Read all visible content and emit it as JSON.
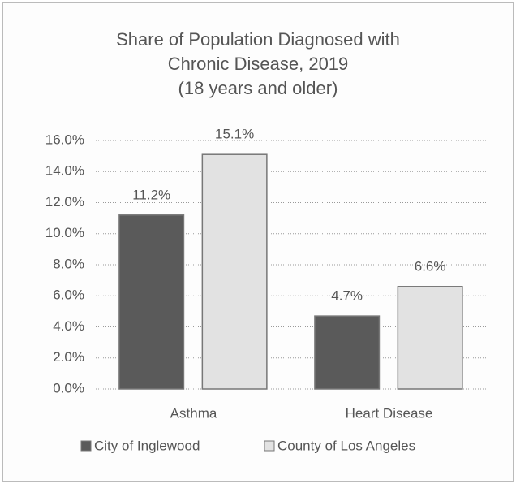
{
  "chart_data": {
    "type": "bar",
    "title": "Share of Population Diagnosed with Chronic Disease, 2019",
    "subtitle": "(18 years and older)",
    "categories": [
      "Asthma",
      "Heart Disease"
    ],
    "series": [
      {
        "name": "City of Inglewood",
        "color": "#5a5a5a",
        "values": [
          11.2,
          4.7
        ],
        "value_labels": [
          "11.2%",
          "4.7%"
        ]
      },
      {
        "name": "County of Los Angeles",
        "color": "#e2e2e2",
        "values": [
          15.1,
          6.6
        ],
        "value_labels": [
          "15.1%",
          "6.6%"
        ]
      }
    ],
    "ylim": [
      0,
      16
    ],
    "yticks": [
      {
        "value": 0,
        "label": "0.0%"
      },
      {
        "value": 2,
        "label": "2.0%"
      },
      {
        "value": 4,
        "label": "4.0%"
      },
      {
        "value": 6,
        "label": "6.0%"
      },
      {
        "value": 8,
        "label": "8.0%"
      },
      {
        "value": 10,
        "label": "10.0%"
      },
      {
        "value": 12,
        "label": "12.0%"
      },
      {
        "value": 14,
        "label": "14.0%"
      },
      {
        "value": 16,
        "label": "16.0%"
      }
    ],
    "grid": true,
    "legend": "bottom"
  }
}
